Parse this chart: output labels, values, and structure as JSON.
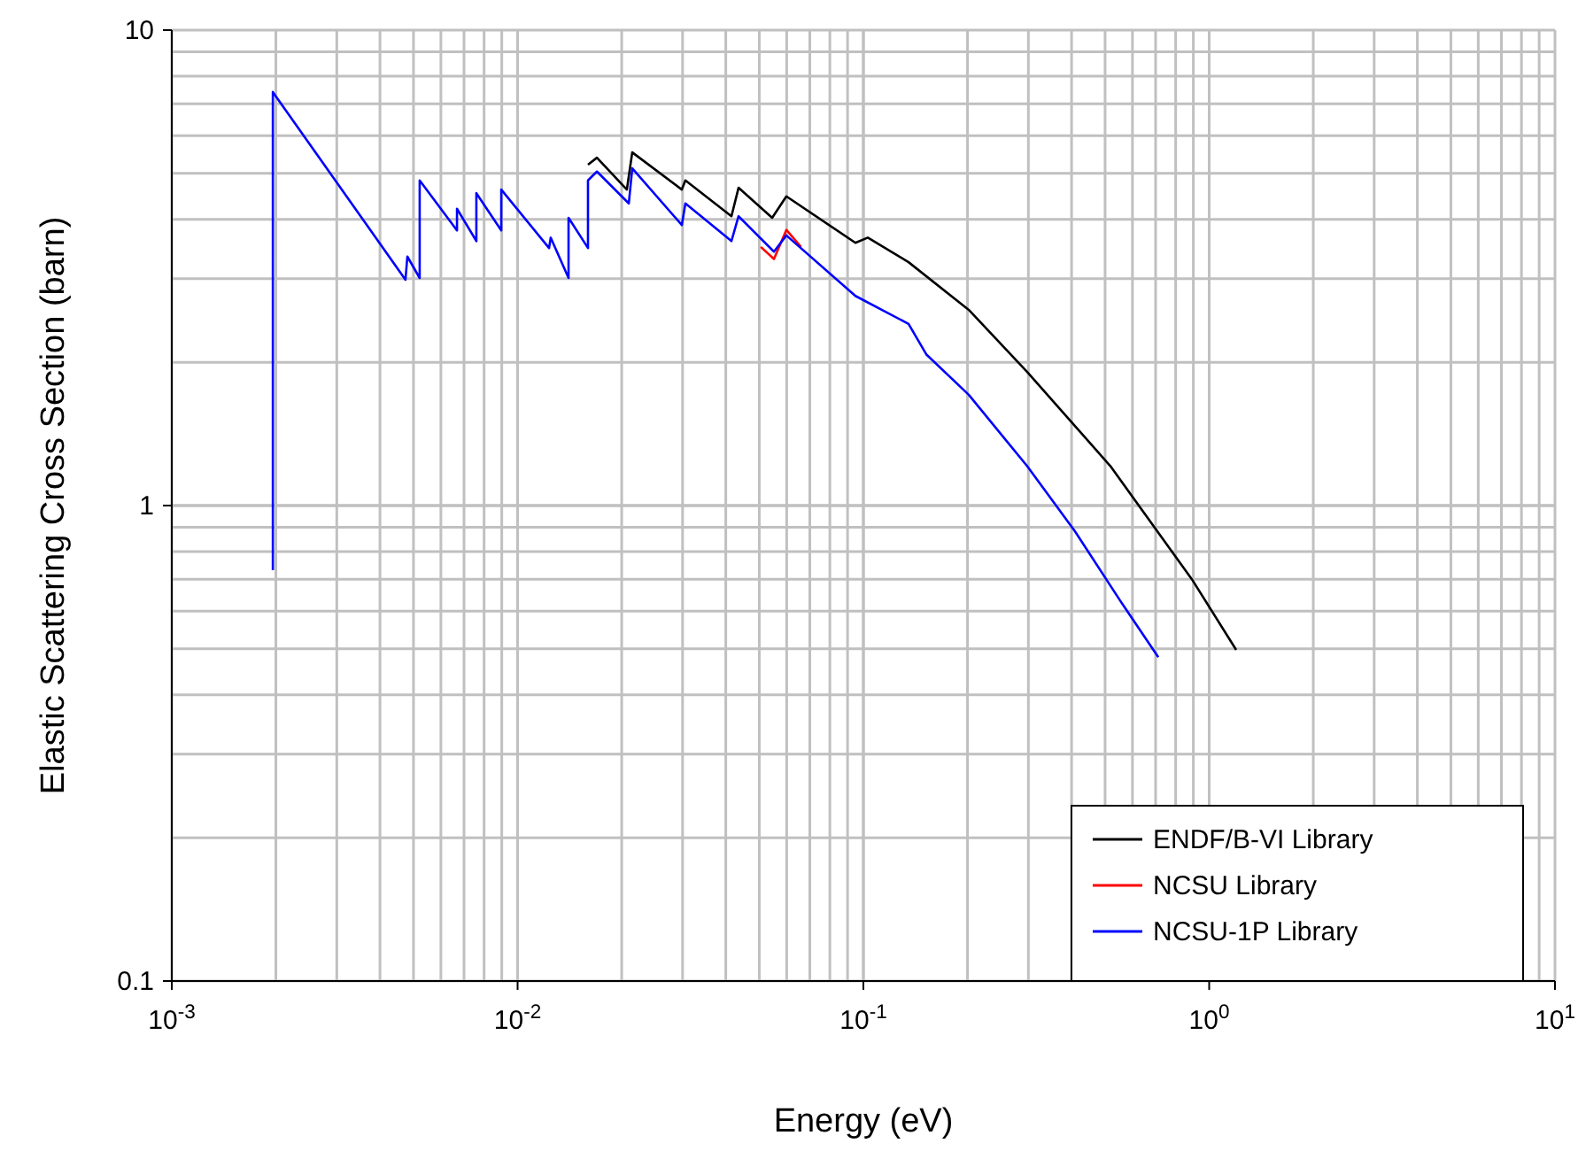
{
  "chart_data": {
    "type": "line",
    "xlabel": "Energy (eV)",
    "ylabel": "Elastic Scattering Cross Section (barn)",
    "log": "xy",
    "grid": true,
    "legend": "bottom right",
    "line_style": "solid",
    "marker": "none",
    "xlim": [
      0.001,
      10
    ],
    "xticks": [
      {
        "value": 0.001,
        "label": "10$^{-3}$"
      },
      {
        "value": 0.01,
        "label": "10$^{-2}$"
      },
      {
        "value": 0.1,
        "label": "10$^{-1}$"
      },
      {
        "value": 1,
        "label": "10$^{0}$"
      },
      {
        "value": 10,
        "label": "10$^{1}$"
      }
    ],
    "ylim": [
      0.1,
      10
    ],
    "yticks": [
      0.1,
      1,
      10
    ],
    "series": [
      {
        "name": "ENDF/B-VI Library",
        "color": "#000000",
        "x": [
          0.01598,
          0.01696,
          0.0207,
          0.02146,
          0.02985,
          0.03057,
          0.04154,
          0.04355,
          0.05448,
          0.05988,
          0.09484,
          0.103,
          0.1351,
          0.2017,
          0.2977,
          0.5183,
          0.891,
          1.197
        ],
        "values": [
          5.21,
          5.39,
          4.62,
          5.53,
          4.62,
          4.83,
          4.06,
          4.66,
          4.03,
          4.47,
          3.57,
          3.66,
          3.25,
          2.58,
          1.91,
          1.21,
          0.7,
          0.497
        ]
      },
      {
        "name": "NCSU Library",
        "color": "#ff0000",
        "x": [
          0.0505,
          0.05513,
          0.05988,
          0.066
        ],
        "values": [
          3.5,
          3.3,
          3.8,
          3.5
        ]
      },
      {
        "name": "NCSU-1P Library",
        "color": "#0000ff",
        "x": [
          0.00196,
          0.00196,
          0.00474,
          0.0048,
          0.00521,
          0.00521,
          0.00668,
          0.00668,
          0.0076,
          0.0076,
          0.00897,
          0.00897,
          0.01233,
          0.01247,
          0.01404,
          0.01404,
          0.01598,
          0.01598,
          0.01696,
          0.02097,
          0.02146,
          0.02985,
          0.03057,
          0.04154,
          0.04355,
          0.05513,
          0.05988,
          0.09484,
          0.1351,
          0.152,
          0.2017,
          0.2977,
          0.409,
          0.556,
          0.7126
        ],
        "values": [
          0.731,
          7.41,
          2.985,
          3.34,
          3.01,
          4.83,
          3.79,
          4.21,
          3.6,
          4.54,
          3.79,
          4.62,
          3.48,
          3.66,
          3.01,
          4.03,
          3.48,
          4.83,
          5.04,
          4.32,
          5.12,
          3.89,
          4.32,
          3.6,
          4.06,
          3.42,
          3.7,
          2.76,
          2.41,
          2.08,
          1.71,
          1.21,
          0.883,
          0.627,
          0.48
        ]
      }
    ]
  }
}
